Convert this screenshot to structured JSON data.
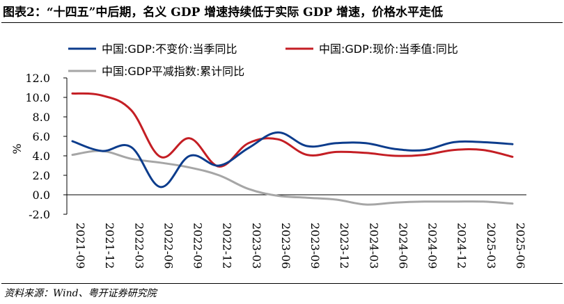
{
  "page": {
    "title": "图表2：“十四五”中后期，名义 GDP 增速持续低于实际 GDP 增速，价格水平走低",
    "source": "资料来源：Wind、粤开证券研究院"
  },
  "chart_data": {
    "type": "line",
    "title": "",
    "xlabel": "",
    "ylabel": "%",
    "ylim": [
      -2,
      12
    ],
    "yticks": [
      "12.0",
      "10.0",
      "8.0",
      "6.0",
      "4.0",
      "2.0",
      "0.0",
      "-2.0"
    ],
    "ytick_values": [
      12,
      10,
      8,
      6,
      4,
      2,
      0,
      -2
    ],
    "grid": false,
    "legend": "top",
    "categories": [
      "2021-09",
      "2021-12",
      "2022-03",
      "2022-06",
      "2022-09",
      "2022-12",
      "2023-03",
      "2023-06",
      "2023-09",
      "2023-12",
      "2024-03",
      "2024-06",
      "2024-09",
      "2024-12",
      "2025-03",
      "2025-06"
    ],
    "series": [
      {
        "name": "中国:GDP:不变价:当季同比",
        "color": "#0c3c8c",
        "values": [
          5.5,
          4.5,
          4.9,
          0.8,
          4.0,
          3.0,
          4.8,
          6.4,
          5.0,
          5.3,
          5.3,
          4.7,
          4.6,
          5.4,
          5.4,
          5.2
        ]
      },
      {
        "name": "中国:GDP:现价:当季值:同比",
        "color": "#c41e24",
        "values": [
          10.4,
          10.2,
          8.7,
          3.9,
          5.8,
          2.9,
          5.3,
          5.7,
          4.1,
          4.4,
          4.3,
          4.0,
          4.1,
          4.6,
          4.6,
          3.9
        ]
      },
      {
        "name": "中国:GDP平减指数:累计同比",
        "color": "#a6a6a6",
        "values": [
          4.1,
          4.5,
          3.7,
          3.3,
          2.8,
          2.0,
          0.6,
          -0.1,
          -0.3,
          -0.5,
          -1.0,
          -0.8,
          -0.7,
          -0.7,
          -0.7,
          -0.9
        ]
      }
    ]
  }
}
